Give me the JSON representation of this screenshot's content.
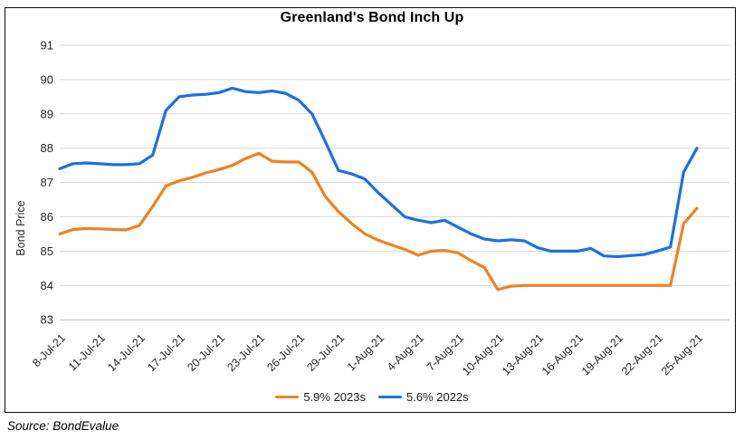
{
  "chart": {
    "source": "Source: BondEvalue"
  },
  "chart_data": {
    "type": "line",
    "title": "Greenland's Bond Inch Up",
    "xlabel": "",
    "ylabel": "Bond Price",
    "ylim": [
      83,
      91
    ],
    "ytick_step": 1,
    "grid": "horizontal",
    "legend_position": "bottom-center",
    "x_tick_labels": [
      "8-Jul-21",
      "11-Jul-21",
      "14-Jul-21",
      "17-Jul-21",
      "20-Jul-21",
      "23-Jul-21",
      "26-Jul-21",
      "29-Jul-21",
      "1-Aug-21",
      "4-Aug-21",
      "7-Aug-21",
      "10-Aug-21",
      "13-Aug-21",
      "16-Aug-21",
      "19-Aug-21",
      "22-Aug-21",
      "25-Aug-21"
    ],
    "x_tick_every": 3,
    "x": [
      "8-Jul-21",
      "9-Jul-21",
      "10-Jul-21",
      "11-Jul-21",
      "12-Jul-21",
      "13-Jul-21",
      "14-Jul-21",
      "15-Jul-21",
      "16-Jul-21",
      "17-Jul-21",
      "18-Jul-21",
      "19-Jul-21",
      "20-Jul-21",
      "21-Jul-21",
      "22-Jul-21",
      "23-Jul-21",
      "24-Jul-21",
      "25-Jul-21",
      "26-Jul-21",
      "27-Jul-21",
      "28-Jul-21",
      "29-Jul-21",
      "30-Jul-21",
      "31-Jul-21",
      "1-Aug-21",
      "2-Aug-21",
      "3-Aug-21",
      "4-Aug-21",
      "5-Aug-21",
      "6-Aug-21",
      "7-Aug-21",
      "8-Aug-21",
      "9-Aug-21",
      "10-Aug-21",
      "11-Aug-21",
      "12-Aug-21",
      "13-Aug-21",
      "14-Aug-21",
      "15-Aug-21",
      "16-Aug-21",
      "17-Aug-21",
      "18-Aug-21",
      "19-Aug-21",
      "20-Aug-21",
      "21-Aug-21",
      "22-Aug-21",
      "23-Aug-21",
      "24-Aug-21",
      "25-Aug-21"
    ],
    "series": [
      {
        "name": "5.9% 2023s",
        "color": "#F08122",
        "values": [
          85.5,
          85.63,
          85.66,
          85.65,
          85.63,
          85.62,
          85.75,
          86.3,
          86.9,
          87.05,
          87.15,
          87.28,
          87.38,
          87.5,
          87.7,
          87.85,
          87.62,
          87.6,
          87.6,
          87.3,
          86.6,
          86.15,
          85.8,
          85.5,
          85.32,
          85.18,
          85.05,
          84.88,
          85.0,
          85.02,
          84.95,
          84.72,
          84.52,
          83.88,
          83.98,
          84.0,
          84.0,
          84.0,
          84.0,
          84.0,
          84.0,
          84.0,
          84.0,
          84.0,
          84.0,
          84.0,
          84.0,
          85.8,
          86.25
        ]
      },
      {
        "name": "5.6% 2022s",
        "color": "#1C6FE4",
        "values": [
          87.4,
          87.55,
          87.57,
          87.55,
          87.52,
          87.52,
          87.55,
          87.8,
          89.1,
          89.5,
          89.55,
          89.57,
          89.62,
          89.75,
          89.65,
          89.62,
          89.67,
          89.6,
          89.4,
          89.0,
          88.2,
          87.35,
          87.25,
          87.1,
          86.7,
          86.35,
          86.0,
          85.9,
          85.83,
          85.9,
          85.7,
          85.5,
          85.35,
          85.3,
          85.33,
          85.3,
          85.1,
          85.0,
          85.0,
          85.0,
          85.08,
          84.86,
          84.84,
          84.87,
          84.9,
          85.0,
          85.12,
          87.3,
          88.0
        ]
      }
    ]
  }
}
